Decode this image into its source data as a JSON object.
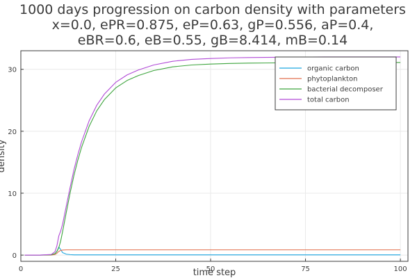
{
  "chart_data": {
    "type": "line",
    "title_lines": [
      "1000 days progression on carbon density with parameters",
      "x=0.0, ePR=0.875, eP=0.63, gP=0.556, aP=0.4,",
      "eBR=0.6, eB=0.55, gB=8.414, mB=0.14"
    ],
    "xlabel": "time step",
    "ylabel": "density",
    "xlim": [
      0,
      102
    ],
    "ylim": [
      -1,
      33
    ],
    "xticks": [
      0,
      25,
      50,
      75,
      100
    ],
    "yticks": [
      0,
      10,
      20,
      30
    ],
    "grid": true,
    "legend_position": "top-right",
    "x": [
      1,
      5,
      8,
      9,
      9.5,
      10,
      10.5,
      11,
      12,
      13,
      14,
      15,
      16,
      18,
      20,
      22,
      25,
      28,
      31,
      35,
      40,
      45,
      50,
      55,
      60,
      70,
      80,
      90,
      100
    ],
    "series": [
      {
        "name": "organic carbon",
        "color": "#1ba6e0",
        "values": [
          0,
          0,
          0.05,
          0.2,
          0.6,
          1.3,
          0.9,
          0.4,
          0.15,
          0.08,
          0.05,
          0.05,
          0.05,
          0.05,
          0.05,
          0.05,
          0.05,
          0.05,
          0.05,
          0.05,
          0.05,
          0.05,
          0.05,
          0.05,
          0.05,
          0.05,
          0.05,
          0.05,
          0.05
        ]
      },
      {
        "name": "phytoplankton",
        "color": "#e2714f",
        "values": [
          0,
          0,
          0.02,
          0.1,
          0.3,
          0.6,
          0.75,
          0.82,
          0.85,
          0.85,
          0.85,
          0.85,
          0.85,
          0.85,
          0.85,
          0.85,
          0.85,
          0.85,
          0.85,
          0.85,
          0.85,
          0.85,
          0.85,
          0.85,
          0.85,
          0.85,
          0.85,
          0.85,
          0.85
        ]
      },
      {
        "name": "bacterial decomposer",
        "color": "#3ca43c",
        "values": [
          0,
          0,
          0.05,
          0.25,
          0.6,
          1.2,
          2.3,
          3.8,
          7.0,
          10.1,
          12.9,
          15.3,
          17.4,
          20.8,
          23.3,
          25.1,
          27.0,
          28.2,
          29.0,
          29.8,
          30.4,
          30.7,
          30.85,
          30.95,
          31.0,
          31.05,
          31.1,
          31.1,
          31.1
        ]
      },
      {
        "name": "total carbon",
        "color": "#b048d6",
        "values": [
          0,
          0,
          0.1,
          0.55,
          1.5,
          3.1,
          3.9,
          5.0,
          8.0,
          11.0,
          13.8,
          16.2,
          18.3,
          21.7,
          24.2,
          26.0,
          27.9,
          29.1,
          29.9,
          30.7,
          31.3,
          31.6,
          31.75,
          31.85,
          31.9,
          31.95,
          32.0,
          32.0,
          32.0
        ]
      }
    ]
  }
}
